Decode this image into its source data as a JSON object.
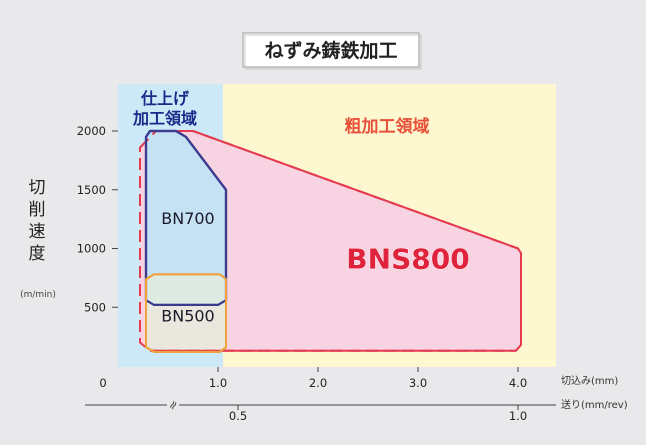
{
  "chart_data": {
    "type": "area",
    "title": "ねずみ鋳鉄加工",
    "ylabel": "切削速度",
    "ylabel_chars": [
      "切",
      "削",
      "速",
      "度"
    ],
    "yunit": "(m/min)",
    "xlabel": "切込み(mm)",
    "x2label": "送り(mm/rev)",
    "xlim": [
      0,
      4.4
    ],
    "ylim": [
      0,
      2450
    ],
    "yticks": [
      {
        "value": 500,
        "label": "500"
      },
      {
        "value": 1000,
        "label": "1000"
      },
      {
        "value": 1500,
        "label": "1500"
      },
      {
        "value": 2000,
        "label": "2000"
      }
    ],
    "xticks": [
      {
        "value": 0,
        "label": "0"
      },
      {
        "value": 1.0,
        "label": "1.0"
      },
      {
        "value": 2.0,
        "label": "2.0"
      },
      {
        "value": 3.0,
        "label": "3.0"
      },
      {
        "value": 4.0,
        "label": "4.0"
      }
    ],
    "x2ticks": [
      {
        "value": 0.5,
        "label": "0.5",
        "at_x": 1.2
      },
      {
        "value": 1.0,
        "label": "1.0",
        "at_x": 4.0
      }
    ],
    "x2_break_at_x": 0.55,
    "regions": [
      {
        "name": "仕上げ加工領域",
        "label_lines": [
          "仕上げ",
          "加工領域"
        ],
        "x": [
          0,
          1.05
        ],
        "fill": "#cde9f7"
      },
      {
        "name": "粗加工領域",
        "label_lines": [
          "粗加工領域"
        ],
        "x": [
          1.05,
          4.4
        ],
        "fill": "#fdf8cf",
        "label_color": "#e8503a"
      }
    ],
    "series": [
      {
        "name": "BNS800",
        "fill": "#f8d4e2",
        "stroke": "#e43a4f",
        "points": [
          [
            0.22,
            1860
          ],
          [
            0.38,
            2000
          ],
          [
            0.75,
            2000
          ],
          [
            4.0,
            1000
          ],
          [
            4.03,
            960
          ],
          [
            4.03,
            180
          ],
          [
            3.98,
            130
          ],
          [
            0.32,
            130
          ],
          [
            0.22,
            200
          ]
        ]
      },
      {
        "name": "BN700",
        "stroke": "#3a3b8f",
        "fill": "#bfe3f6",
        "points": [
          [
            0.32,
            2000
          ],
          [
            0.58,
            2000
          ],
          [
            0.68,
            1950
          ],
          [
            1.08,
            1500
          ],
          [
            1.08,
            560
          ],
          [
            1.0,
            520
          ],
          [
            0.36,
            520
          ],
          [
            0.28,
            560
          ],
          [
            0.28,
            1950
          ]
        ]
      },
      {
        "name": "BN500",
        "stroke": "#f0a23c",
        "fill": "#e6eedd",
        "points": [
          [
            0.36,
            780
          ],
          [
            1.02,
            780
          ],
          [
            1.08,
            740
          ],
          [
            1.08,
            160
          ],
          [
            1.02,
            120
          ],
          [
            0.36,
            120
          ],
          [
            0.28,
            160
          ],
          [
            0.28,
            740
          ]
        ]
      }
    ],
    "series_label_positions": {
      "BNS800": {
        "x": 2.9,
        "y": 830
      },
      "BN700": {
        "x": 0.7,
        "y": 1210
      },
      "BN500": {
        "x": 0.7,
        "y": 380
      }
    }
  }
}
